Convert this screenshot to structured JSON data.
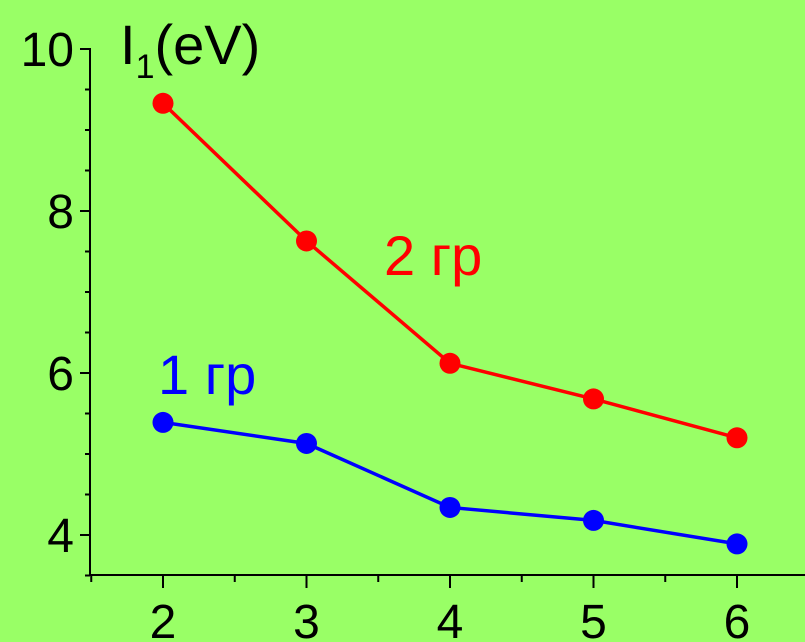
{
  "chart_data": {
    "type": "line",
    "x": [
      2,
      3,
      4,
      5,
      6
    ],
    "xticks": [
      "2",
      "3",
      "4",
      "5",
      "6"
    ],
    "yticks": [
      "4",
      "6",
      "8",
      "10"
    ],
    "xlim": [
      1.5,
      6.5
    ],
    "ylim": [
      3.5,
      10
    ],
    "ylabel": {
      "main": "I",
      "sub": "1",
      "unit": "(eV)"
    },
    "grid": false,
    "series": [
      {
        "name": "2 гр",
        "color": "#ff0000",
        "values": [
          9.33,
          7.63,
          6.12,
          5.68,
          5.2
        ]
      },
      {
        "name": "1 гр",
        "color": "#0000ff",
        "values": [
          5.39,
          5.13,
          4.34,
          4.18,
          3.89
        ]
      }
    ]
  }
}
